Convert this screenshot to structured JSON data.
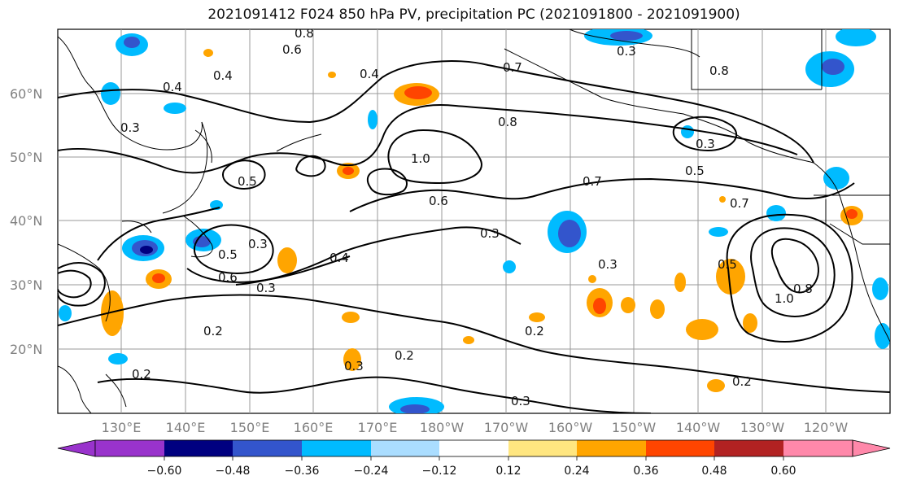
{
  "title": "2021091412 F024 850 hPa PV, precipitation PC (2021091800 - 2021091900)",
  "map": {
    "lat_labels": [
      "60°N",
      "50°N",
      "40°N",
      "30°N",
      "20°N"
    ],
    "lon_labels": [
      "130°E",
      "140°E",
      "150°E",
      "160°E",
      "170°E",
      "180°W",
      "170°W",
      "160°W",
      "150°W",
      "140°W",
      "130°W",
      "120°W"
    ],
    "contour_labels": [
      "0.4",
      "0.4",
      "0.6",
      "0.8",
      "0.4",
      "0.3",
      "0.7",
      "0.3",
      "0.8",
      "0.8",
      "0.3",
      "0.5",
      "0.5",
      "1.0",
      "0.6",
      "0.7",
      "0.7",
      "0.3",
      "0.3",
      "0.5",
      "0.4",
      "0.6",
      "0.3",
      "0.5",
      "0.3",
      "1.0",
      "0.8",
      "0.2",
      "0.2",
      "0.2",
      "0.3",
      "0.2",
      "0.2",
      "0.3"
    ]
  },
  "colorbar": {
    "ticks": [
      "−0.60",
      "−0.48",
      "−0.36",
      "−0.24",
      "−0.12",
      "0.12",
      "0.24",
      "0.36",
      "0.48",
      "0.60"
    ],
    "colors": [
      "#9933cc",
      "#000080",
      "#3355cc",
      "#00bbff",
      "#aaddff",
      "#ffffff",
      "#ffe680",
      "#ffa500",
      "#ff4500",
      "#b22222",
      "#ff88aa"
    ]
  },
  "colors": {
    "positive_anomaly": "#ffa500",
    "negative_anomaly": "#00bbff",
    "contour": "#000000",
    "grid": "#999999"
  }
}
